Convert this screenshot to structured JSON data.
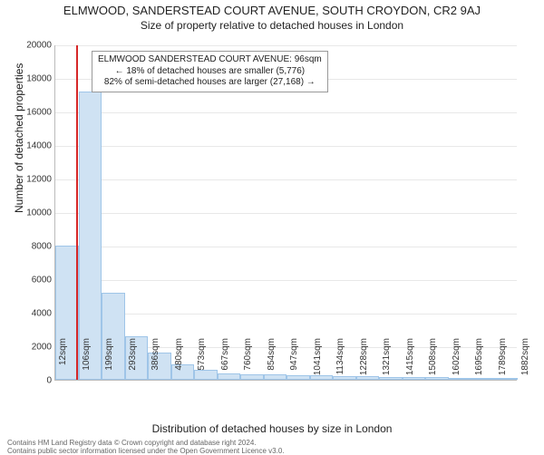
{
  "title": "ELMWOOD, SANDERSTEAD COURT AVENUE, SOUTH CROYDON, CR2 9AJ",
  "subtitle": "Size of property relative to detached houses in London",
  "ylabel": "Number of detached properties",
  "xlabel": "Distribution of detached houses by size in London",
  "footer1": "Contains HM Land Registry data © Crown copyright and database right 2024.",
  "footer2": "Contains public sector information licensed under the Open Government Licence v3.0.",
  "annotation": {
    "line1": "ELMWOOD SANDERSTEAD COURT AVENUE: 96sqm",
    "line2": "← 18% of detached houses are smaller (5,776)",
    "line3": "82% of semi-detached houses are larger (27,168) →"
  },
  "chart": {
    "type": "histogram",
    "ymax": 20000,
    "ytick_step": 2000,
    "background_color": "#ffffff",
    "grid_color": "#e8e8e8",
    "bar_fill": "#cfe2f3",
    "bar_border": "#9fc5e8",
    "marker_color": "#d62728",
    "marker_value_sqm": 96,
    "title_fontsize": 13,
    "subtitle_fontsize": 12,
    "axis_label_fontsize": 12,
    "tick_fontsize": 10,
    "annot_fontsize": 10,
    "xtick_labels": [
      "12sqm",
      "106sqm",
      "199sqm",
      "293sqm",
      "386sqm",
      "480sqm",
      "573sqm",
      "667sqm",
      "760sqm",
      "854sqm",
      "947sqm",
      "1041sqm",
      "1134sqm",
      "1228sqm",
      "1321sqm",
      "1415sqm",
      "1508sqm",
      "1602sqm",
      "1695sqm",
      "1789sqm",
      "1882sqm"
    ],
    "bar_values": [
      8000,
      17200,
      5200,
      2600,
      1600,
      900,
      600,
      400,
      350,
      300,
      280,
      250,
      220,
      200,
      180,
      160,
      140,
      120,
      100,
      80
    ]
  }
}
